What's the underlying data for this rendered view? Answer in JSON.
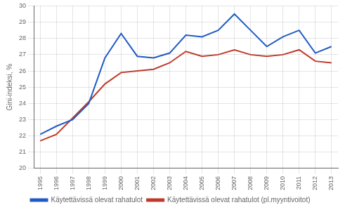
{
  "chart_data": {
    "type": "line",
    "x": [
      1995,
      1996,
      1997,
      1998,
      1999,
      2000,
      2001,
      2002,
      2003,
      2004,
      2005,
      2006,
      2007,
      2008,
      2009,
      2010,
      2011,
      2012,
      2013
    ],
    "series": [
      {
        "name": "Käytettävissä olevat rahatulot",
        "color": "#1F5BC4",
        "values": [
          22.1,
          22.6,
          23.0,
          24.0,
          26.8,
          28.3,
          26.9,
          26.8,
          27.1,
          28.2,
          28.1,
          28.5,
          29.5,
          28.5,
          27.5,
          28.1,
          28.5,
          27.1,
          27.5
        ]
      },
      {
        "name": "Käytettävissä olevat rahatulot (pl.myyntivoitot)",
        "color": "#C0392B",
        "values": [
          21.7,
          22.1,
          23.1,
          24.1,
          25.2,
          25.9,
          26.0,
          26.1,
          26.5,
          27.2,
          26.9,
          27.0,
          27.3,
          27.0,
          26.9,
          27.0,
          27.3,
          26.6,
          26.5
        ]
      }
    ],
    "ylabel": "Gini-indeksi, %",
    "xlim": [
      1994.6,
      2013.4
    ],
    "xticks": [
      1995,
      1996,
      1997,
      1998,
      1999,
      2000,
      2001,
      2002,
      2003,
      2004,
      2005,
      2006,
      2007,
      2008,
      2009,
      2010,
      2011,
      2012,
      2013
    ],
    "ylim": [
      20,
      30
    ],
    "yticks": [
      20,
      21,
      22,
      23,
      24,
      25,
      26,
      27,
      28,
      29,
      30
    ],
    "grid": true,
    "legend": "bottom"
  }
}
